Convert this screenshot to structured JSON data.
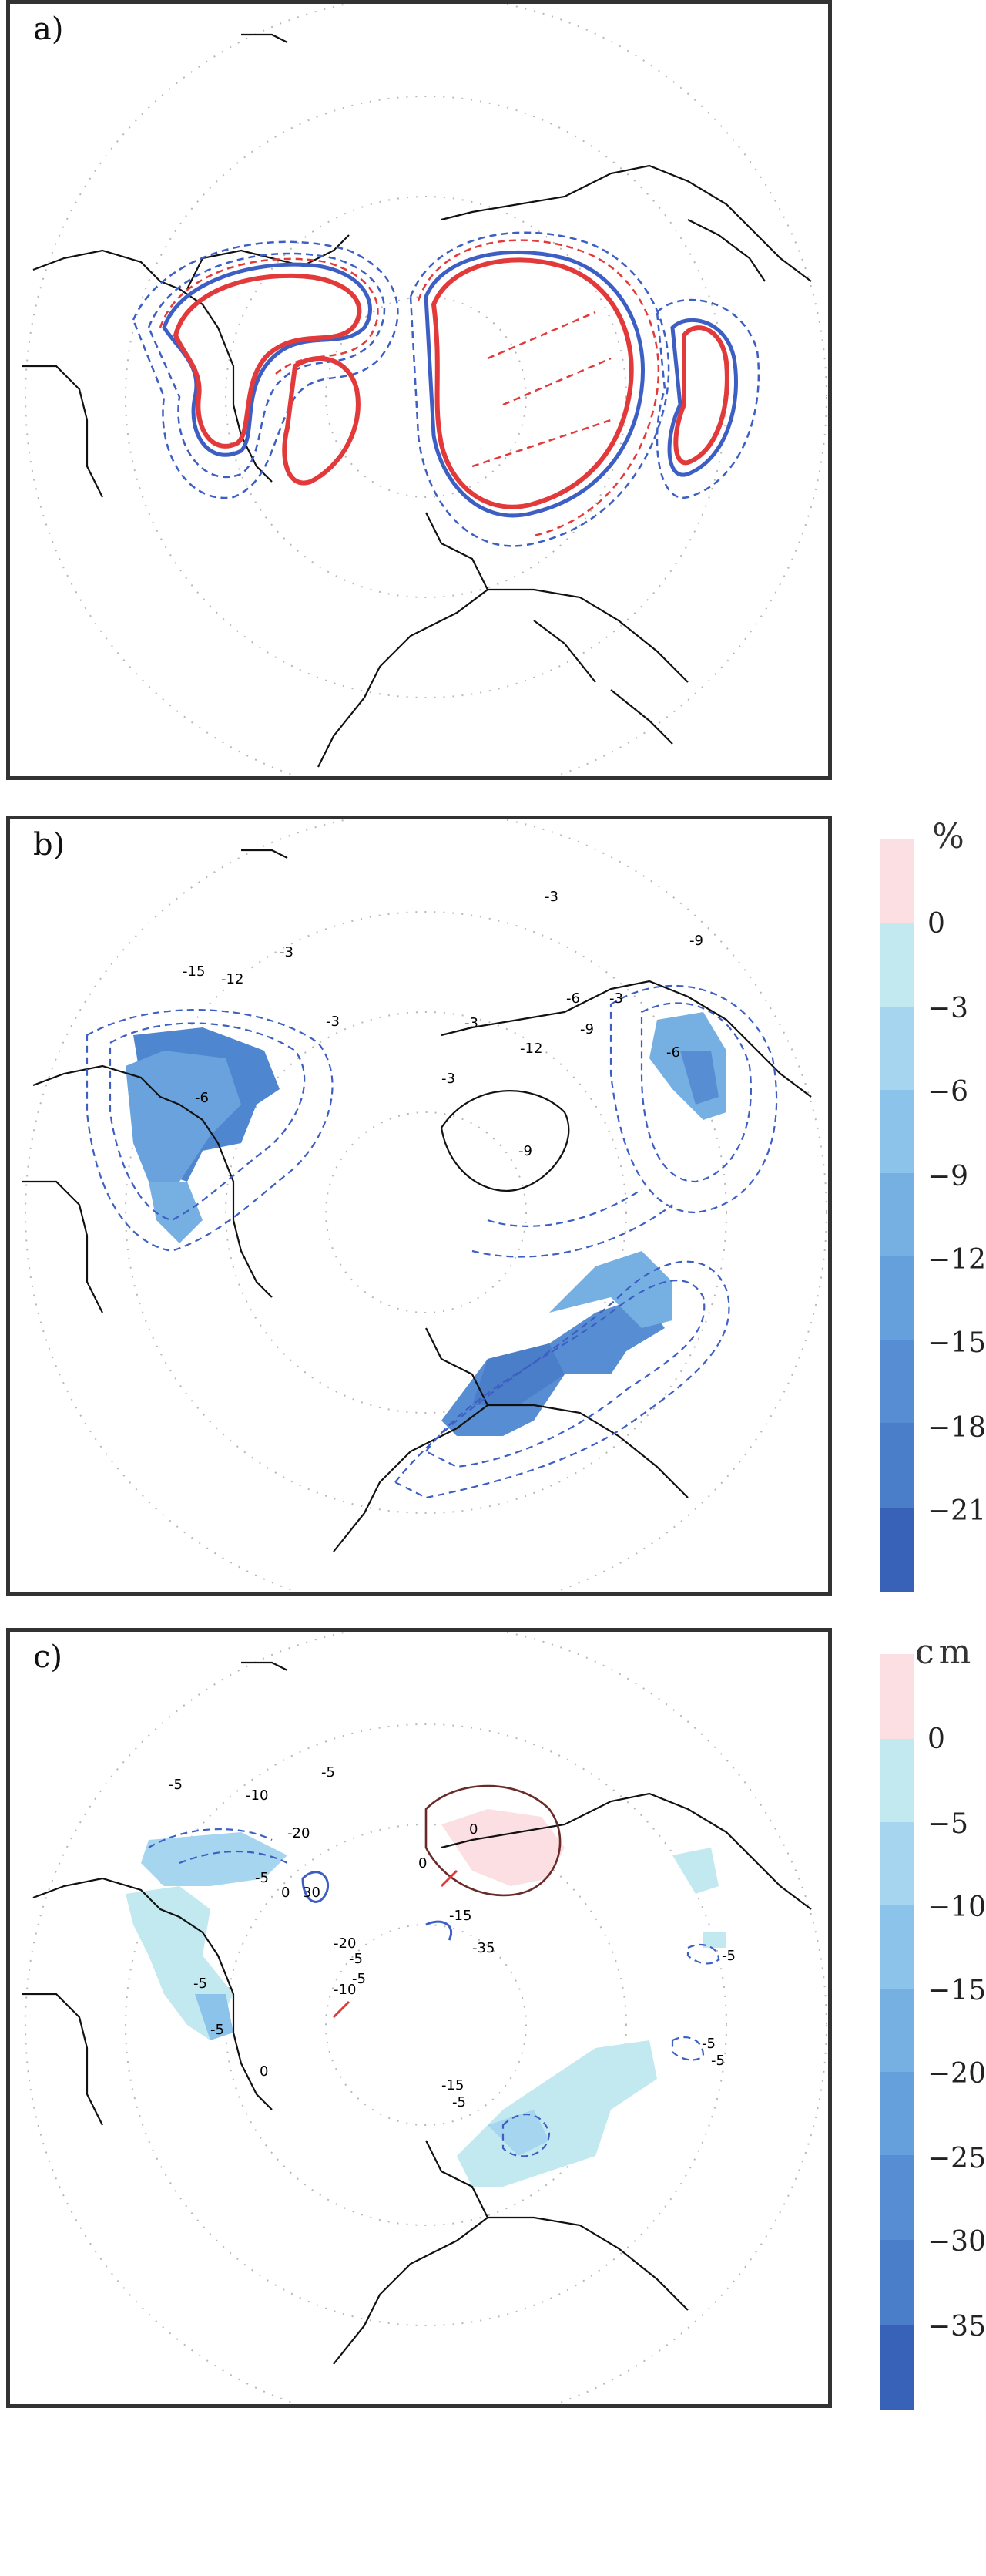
{
  "panels": [
    {
      "label": "a)"
    },
    {
      "label": "b)"
    },
    {
      "label": "c)"
    }
  ],
  "colorbar_b": {
    "unit": "%",
    "ticks": [
      "0",
      "−3",
      "−6",
      "−9",
      "−12",
      "−15",
      "−18",
      "−21"
    ],
    "positive_color": "#fbdfe2",
    "colors": [
      "#c2e8f0",
      "#a6d5ef",
      "#8cc3ea",
      "#76b0e3",
      "#659fdc",
      "#578ed3",
      "#4b7ec9",
      "#406fbf",
      "#3762b8"
    ]
  },
  "colorbar_c": {
    "unit": "cm",
    "ticks": [
      "0",
      "−5",
      "−10",
      "−15",
      "−20",
      "−25",
      "−30",
      "−35"
    ],
    "positive_color": "#fbdfe2",
    "colors": [
      "#c2e8f0",
      "#a6d5ef",
      "#8cc3ea",
      "#76b0e3",
      "#659fdc",
      "#578ed3",
      "#4b7ec9",
      "#406fbf",
      "#3762b8"
    ]
  },
  "contour_labels_b": [
    "-3",
    "-15",
    "-12",
    "-6",
    "-3",
    "-3",
    "-6",
    "-3",
    "-9",
    "-9",
    "-12",
    "-6",
    "-3",
    "-9",
    "-3"
  ],
  "contour_labels_c": [
    "-5",
    "-10",
    "-20",
    "-5",
    "-5",
    "0",
    "0",
    "-5",
    "-5",
    "30",
    "0",
    "-15",
    "-35",
    "-20",
    "-5",
    "-10",
    "0",
    "-5",
    "-5",
    "-15",
    "-5",
    "-5",
    "-5"
  ],
  "colors": {
    "coast": "#111111",
    "red_contour": "#e23a3a",
    "blue_contour": "#3d5fc4",
    "grid": "#b8b8b8"
  }
}
